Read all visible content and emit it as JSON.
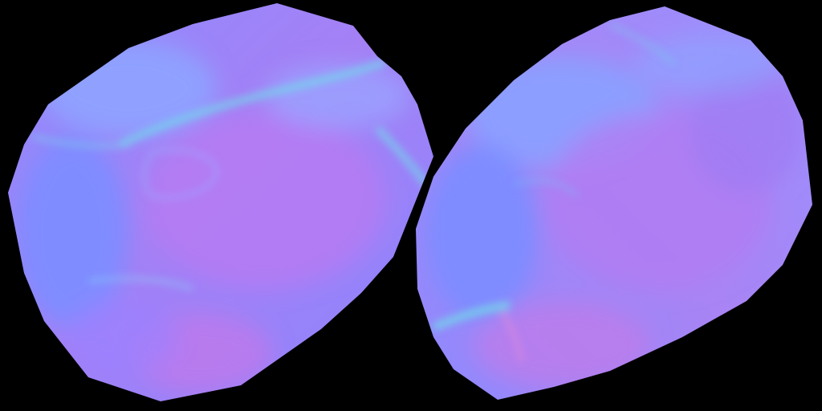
{
  "background": "#000000",
  "palette": {
    "base_blue": "#7f7fff",
    "light_blue": "#8a9cff",
    "violet": "#b07aff",
    "magenta": "#d27ae8",
    "cyan": "#6fe0e8",
    "periwinkle": "#6f8cff"
  },
  "islands": [
    {
      "name": "left-normal-map-island"
    },
    {
      "name": "right-normal-map-island"
    }
  ]
}
